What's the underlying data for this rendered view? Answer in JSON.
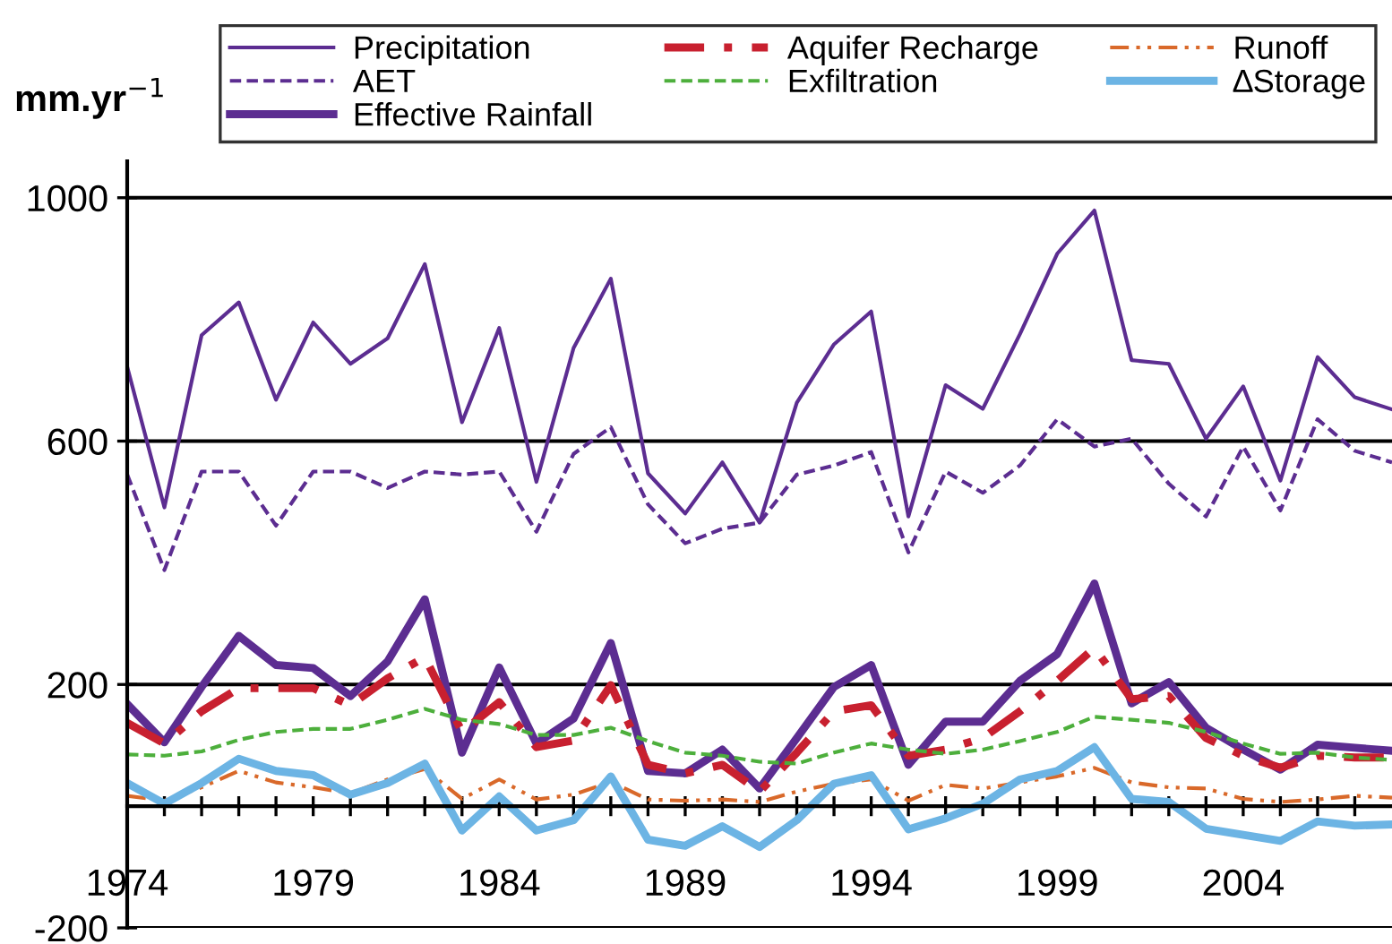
{
  "chart_data": {
    "type": "line",
    "ylabel": "mm.yr$^{−1}$",
    "x": [
      1974,
      1975,
      1976,
      1977,
      1978,
      1979,
      1980,
      1981,
      1982,
      1983,
      1984,
      1985,
      1986,
      1987,
      1988,
      1989,
      1990,
      1991,
      1992,
      1993,
      1994,
      1995,
      1996,
      1997,
      1998,
      1999,
      2000,
      2001,
      2002,
      2003,
      2004,
      2005,
      2006,
      2007,
      2008
    ],
    "xlim": [
      1974,
      2008
    ],
    "xticks": [
      1974,
      {
        "value": 1975,
        "label": null
      },
      {
        "value": 1976,
        "label": null
      },
      {
        "value": 1977,
        "label": null
      },
      {
        "value": 1978,
        "label": null
      },
      1979,
      {
        "value": 1980,
        "label": null
      },
      {
        "value": 1981,
        "label": null
      },
      {
        "value": 1982,
        "label": null
      },
      {
        "value": 1983,
        "label": null
      },
      1984,
      {
        "value": 1985,
        "label": null
      },
      {
        "value": 1986,
        "label": null
      },
      {
        "value": 1987,
        "label": null
      },
      {
        "value": 1988,
        "label": null
      },
      1989,
      {
        "value": 1990,
        "label": null
      },
      {
        "value": 1991,
        "label": null
      },
      {
        "value": 1992,
        "label": null
      },
      {
        "value": 1993,
        "label": null
      },
      1994,
      {
        "value": 1995,
        "label": null
      },
      {
        "value": 1996,
        "label": null
      },
      {
        "value": 1997,
        "label": null
      },
      {
        "value": 1998,
        "label": null
      },
      1999,
      {
        "value": 2000,
        "label": null
      },
      {
        "value": 2001,
        "label": null
      },
      {
        "value": 2002,
        "label": null
      },
      {
        "value": 2003,
        "label": null
      },
      2004,
      {
        "value": 2005,
        "label": null
      },
      {
        "value": 2006,
        "label": null
      },
      {
        "value": 2007,
        "label": null
      }
    ],
    "ylim": [
      -200,
      1060
    ],
    "yticks": [
      -200,
      200,
      600,
      1000
    ],
    "grid": "y",
    "legend": "top",
    "marker": "none",
    "series": [
      {
        "name": "Precipitation",
        "color": "#5c2d91",
        "line_style": "solid",
        "values": [
          722,
          491,
          774,
          828,
          668,
          795,
          727,
          769,
          891,
          631,
          786,
          533,
          753,
          867,
          547,
          481,
          565,
          466,
          663,
          759,
          813,
          476,
          692,
          653,
          776,
          908,
          979,
          733,
          727,
          604,
          690,
          535,
          738,
          672,
          652
        ]
      },
      {
        "name": "AET",
        "color": "#5c2d91",
        "line_style": "dashed",
        "values": [
          545,
          388,
          550,
          550,
          461,
          550,
          550,
          523,
          550,
          545,
          550,
          451,
          579,
          623,
          496,
          432,
          456,
          466,
          545,
          560,
          582,
          417,
          550,
          515,
          560,
          636,
          591,
          604,
          530,
          476,
          591,
          486,
          636,
          584,
          565
        ]
      },
      {
        "name": "Effective Rainfall",
        "color": "#5c2d91",
        "line_style": "solid",
        "values": [
          168,
          105,
          196,
          280,
          232,
          227,
          181,
          238,
          340,
          88,
          228,
          103,
          144,
          268,
          58,
          54,
          93,
          29,
          112,
          196,
          232,
          68,
          139,
          139,
          206,
          250,
          366,
          169,
          204,
          129,
          93,
          60,
          101,
          96,
          91
        ]
      },
      {
        "name": "Aquifer Recharge",
        "color": "#c8202f",
        "line_style": "dashdot",
        "values": [
          137,
          103,
          156,
          194,
          194,
          194,
          166,
          210,
          245,
          122,
          171,
          97,
          108,
          199,
          68,
          54,
          68,
          24,
          88,
          156,
          166,
          83,
          93,
          112,
          156,
          206,
          260,
          176,
          181,
          112,
          83,
          63,
          83,
          80,
          80
        ]
      },
      {
        "name": "Exfiltration",
        "color": "#4daf3c",
        "line_style": "dashed",
        "values": [
          85,
          83,
          90,
          109,
          122,
          127,
          127,
          142,
          160,
          142,
          135,
          117,
          117,
          129,
          107,
          88,
          83,
          73,
          70,
          88,
          103,
          93,
          86,
          93,
          107,
          122,
          147,
          142,
          137,
          122,
          103,
          86,
          88,
          80,
          76
        ]
      },
      {
        "name": "Runoff",
        "color": "#d9692a",
        "line_style": "dashdotdot",
        "values": [
          17,
          9,
          31,
          58,
          39,
          31,
          21,
          44,
          61,
          12,
          44,
          11,
          19,
          40,
          11,
          9,
          11,
          7,
          24,
          37,
          44,
          9,
          35,
          29,
          39,
          49,
          63,
          39,
          31,
          29,
          12,
          7,
          11,
          17,
          14
        ]
      },
      {
        "name": "∆Storage",
        "color": "#6cb4e4",
        "line_style": "solid",
        "values": [
          38,
          4,
          38,
          78,
          58,
          51,
          19,
          38,
          70,
          -40,
          16,
          -40,
          -23,
          49,
          -55,
          -65,
          -33,
          -67,
          -23,
          37,
          51,
          -38,
          -20,
          4,
          44,
          58,
          97,
          12,
          7,
          -37,
          -47,
          -57,
          -25,
          -32,
          -30
        ]
      }
    ]
  }
}
